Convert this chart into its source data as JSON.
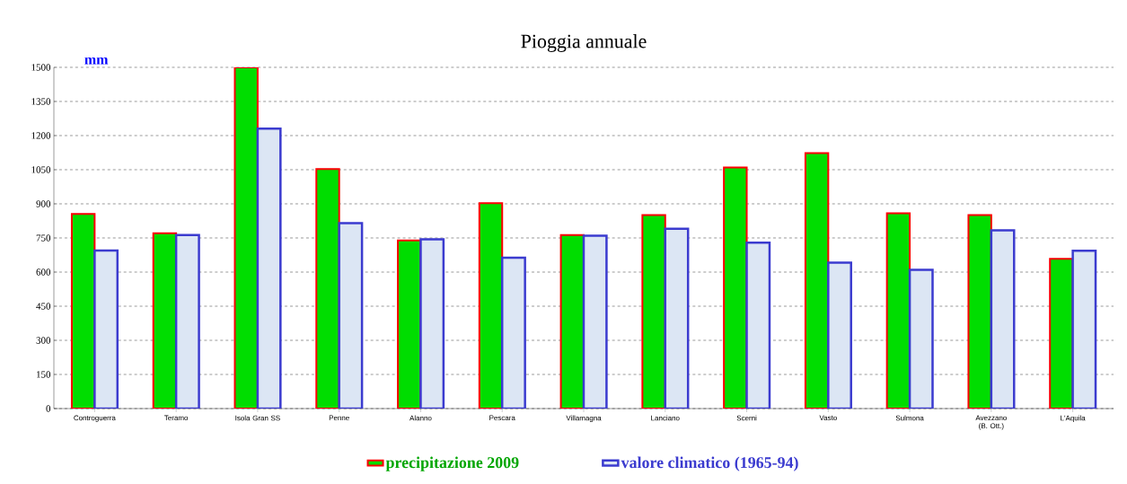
{
  "chart_data": {
    "type": "bar",
    "title": "Pioggia annuale",
    "ylabel": "mm",
    "categories": [
      "Controguerra",
      "Teramo",
      "Isola Gran SS",
      "Penne",
      "Alanno",
      "Pescara",
      "Villamagna",
      "Lanciano",
      "Scerni",
      "Vasto",
      "Sulmona",
      "Avezzano (B. Ott.)",
      "L'Aquila"
    ],
    "series": [
      {
        "name": "precipitazione 2009",
        "color": "#00dd00",
        "values": [
          856,
          771,
          1500,
          1053,
          739,
          903,
          763,
          851,
          1060,
          1123,
          859,
          851,
          658
        ]
      },
      {
        "name": "valore climatico  (1965-94)",
        "color": "#dce6f4",
        "values": [
          695,
          763,
          1231,
          815,
          744,
          663,
          760,
          790,
          729,
          641,
          610,
          784,
          694
        ]
      }
    ],
    "ylim": [
      0,
      1500
    ],
    "yticks": [
      0,
      150,
      300,
      450,
      600,
      750,
      900,
      1050,
      1200,
      1350,
      1500
    ],
    "grid": "y",
    "legend": "bottom"
  }
}
